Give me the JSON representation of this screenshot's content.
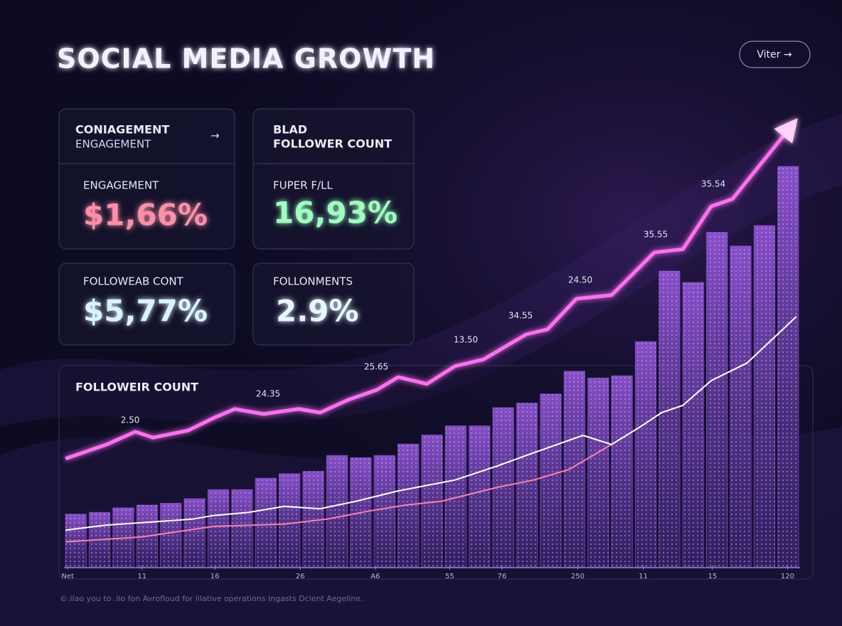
{
  "header": {
    "title": "SOCIAL MEDIA GROWTH",
    "button": "Viter →"
  },
  "cards": [
    {
      "header": [
        "CONIAGEMENT",
        "ENGAGEMENT"
      ],
      "arrow": "→",
      "label": "ENGAGEMENT",
      "value": "$1,66%",
      "color": "#ff8fa8"
    },
    {
      "header": [
        "BLAD",
        "FOLLOWER COUNT"
      ],
      "label": "FUPER F/LL",
      "value": "16,93%",
      "color": "#9dffc0"
    },
    {
      "label": "FOLLOWEAB CONT",
      "value": "$5,77%",
      "color": "#d9f3ff"
    },
    {
      "label": "FOLLONMENTS",
      "value": "2.9%",
      "color": "#e6f6ff"
    }
  ],
  "chart_data": {
    "type": "combo",
    "title": "FOLLOWEIR COUNT",
    "ylim": [
      0,
      100
    ],
    "xlim": [
      0,
      100
    ],
    "bars": {
      "color": "#8a4fd0",
      "values": [
        11.6,
        12,
        13,
        13.6,
        14,
        15,
        17,
        17,
        19.5,
        20.5,
        21,
        24.5,
        24,
        24.5,
        27,
        29,
        31,
        31,
        35,
        36,
        38,
        43,
        41.5,
        42,
        49.5,
        65,
        62.5,
        73.5,
        70.5,
        75,
        88
      ]
    },
    "series": [
      {
        "color": "#ff6ff0",
        "x": [
          0.2,
          5.8,
          9.7,
          12.1,
          16.9,
          20.3,
          23.2,
          27.1,
          31.9,
          34.8,
          38.6,
          42.5,
          45.4,
          49.3,
          53.1,
          57.0,
          62.8,
          65.7,
          69.6,
          74.4,
          80.2,
          84.1,
          87.9,
          90.8,
          98.6
        ],
        "values": [
          23.8,
          26.9,
          29.7,
          28.4,
          30,
          32.7,
          34.7,
          33.6,
          34.7,
          33.9,
          36.7,
          38.9,
          41.7,
          40.2,
          44.1,
          45.6,
          51.1,
          52.2,
          58.9,
          59.7,
          69.1,
          69.8,
          79.2,
          80.8,
          96.4
        ]
      },
      {
        "color": "#ffffff",
        "x": [
          0.2,
          5.8,
          17.4,
          20.3,
          25.1,
          29.9,
          34.8,
          39.6,
          45.4,
          53.1,
          58.9,
          62.8,
          70.5,
          74.4,
          78.3,
          81.2,
          84.1,
          87.9,
          92.8,
          99.5
        ],
        "values": [
          8.1,
          9.2,
          10.5,
          11.3,
          12,
          13.3,
          12.8,
          14.4,
          16.7,
          19.1,
          22.2,
          24.5,
          28.9,
          26.9,
          30.8,
          33.9,
          35.5,
          40.9,
          44.8,
          55
        ]
      },
      {
        "color": "#ff7fa8",
        "x": [
          0.2,
          10.6,
          20.3,
          29.9,
          35.7,
          41.5,
          46.4,
          51.2,
          58.9,
          63.8,
          68.6,
          74.4
        ],
        "values": [
          5.5,
          6.6,
          8.9,
          9.4,
          10.5,
          12.3,
          13.6,
          14.4,
          17.5,
          19.1,
          21.4,
          26.9
        ]
      }
    ],
    "annotations": [
      "2.50",
      "24.35",
      "25.65",
      "13.50",
      "34.55",
      "24.50",
      "35.55",
      "35.54"
    ],
    "xticks": [
      {
        "value": 0.5,
        "label": "Net"
      },
      {
        "value": 10.6,
        "label": "11"
      },
      {
        "value": 20.5,
        "label": "16"
      },
      {
        "value": 32.1,
        "label": "26"
      },
      {
        "value": 42.3,
        "label": "A6"
      },
      {
        "value": 52.4,
        "label": "55"
      },
      {
        "value": 59.5,
        "label": "76"
      },
      {
        "value": 69.8,
        "label": "250"
      },
      {
        "value": 78.7,
        "label": "11"
      },
      {
        "value": 88.1,
        "label": "15"
      },
      {
        "value": 98.3,
        "label": "120"
      }
    ]
  },
  "footer": "©.ilao you to .ilo fon Avrofloud for lilative operations Ingasts Dclent Aegeline."
}
